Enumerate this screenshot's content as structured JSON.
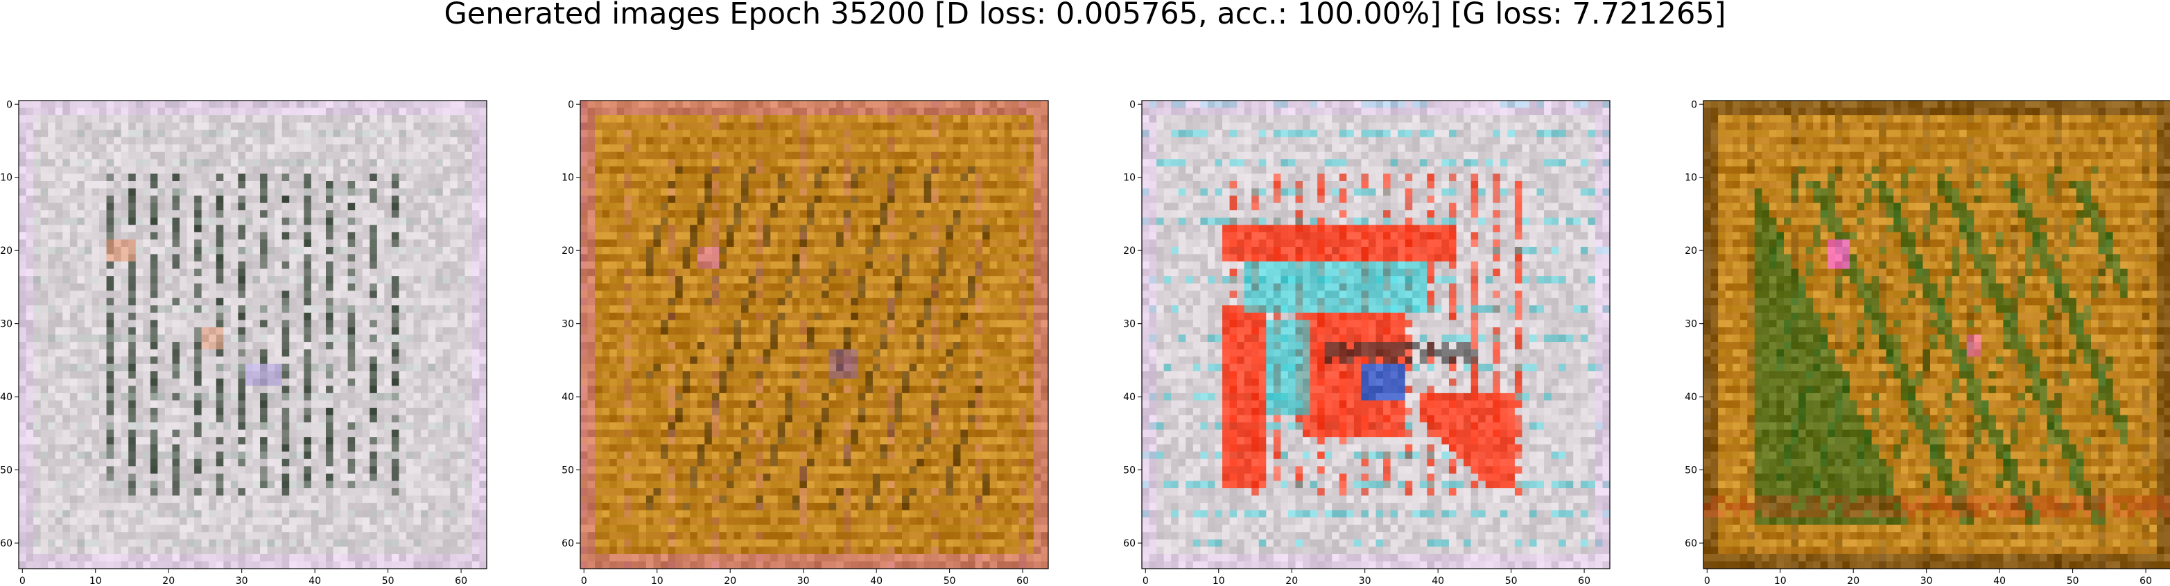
{
  "title": "Generated images Epoch 35200 [D loss: 0.005765, acc.: 100.00%] [G loss: 7.721265]",
  "axis": {
    "x_range": [
      0,
      63
    ],
    "y_range": [
      0,
      63
    ],
    "x_ticks": [
      "0",
      "10",
      "20",
      "30",
      "40",
      "50",
      "60"
    ],
    "y_ticks": [
      "0",
      "10",
      "20",
      "30",
      "40",
      "50",
      "60"
    ]
  },
  "panels": [
    {
      "id": "generated-image-1",
      "style": "light",
      "base_color": "#d8d2d6",
      "accent_colors": [
        "#2a3a2a",
        "#b9c6c1",
        "#e7a07f",
        "#b9a9e0"
      ]
    },
    {
      "id": "generated-image-2",
      "style": "ochre",
      "base_color": "#b87a1a",
      "accent_colors": [
        "#4a3410",
        "#e8b23a",
        "#7a4a0a",
        "#d97a9a"
      ]
    },
    {
      "id": "generated-image-3",
      "style": "light-red",
      "base_color": "#d8d2d6",
      "accent_colors": [
        "#ff3a1a",
        "#33d0d8",
        "#2a6ae0",
        "#2a2a2a"
      ]
    },
    {
      "id": "generated-image-4",
      "style": "ochre-green",
      "base_color": "#b87a1a",
      "accent_colors": [
        "#2f6a1e",
        "#e8b23a",
        "#ff6fd0",
        "#5a3a10"
      ]
    }
  ]
}
